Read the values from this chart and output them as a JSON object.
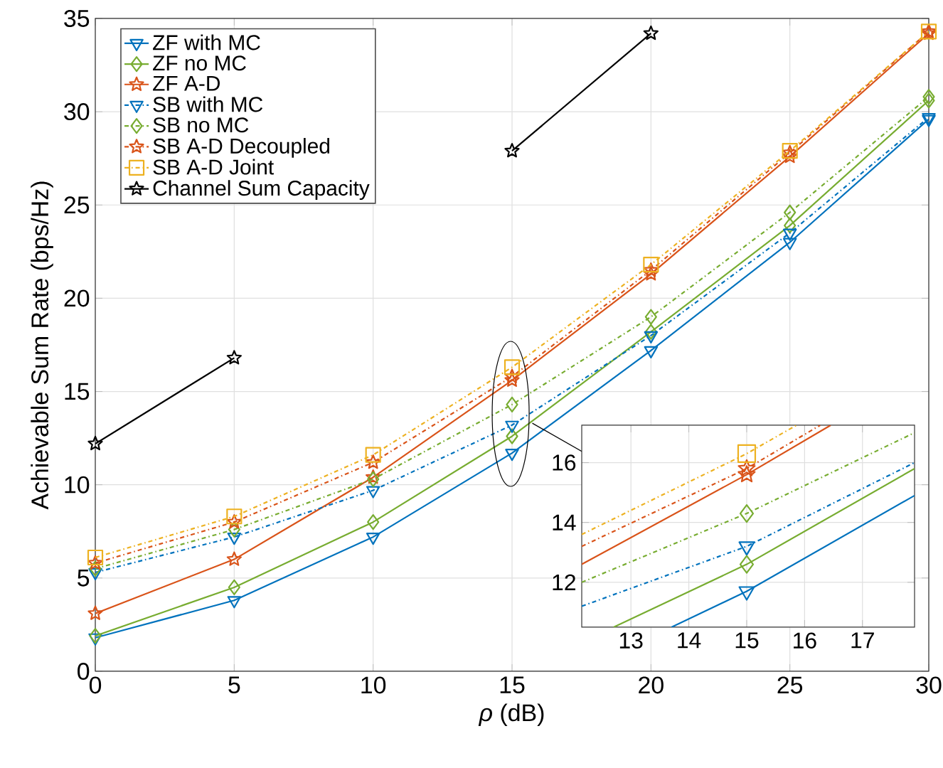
{
  "chart_data": [
    {
      "type": "line",
      "xlabel": "*ρ* (dB)",
      "ylabel": "Achievable Sum Rate (bps/Hz)",
      "x": [
        0,
        5,
        10,
        15,
        20,
        25,
        30
      ],
      "xlim": [
        0,
        30
      ],
      "ylim": [
        0,
        35
      ],
      "xticks": [
        0,
        5,
        10,
        15,
        20,
        25,
        30
      ],
      "yticks": [
        0,
        5,
        10,
        15,
        20,
        25,
        30,
        35
      ],
      "grid": true,
      "legend": "top left",
      "series": [
        {
          "name": "ZF with MC",
          "color": "#0072bd",
          "marker": "triangle",
          "line_style": "solid",
          "values": [
            1.8,
            3.8,
            7.2,
            11.7,
            17.2,
            23.0,
            29.6
          ]
        },
        {
          "name": "ZF no MC",
          "color": "#77ac30",
          "marker": "diamond",
          "line_style": "solid",
          "values": [
            1.9,
            4.5,
            8.0,
            12.6,
            18.2,
            23.9,
            30.6
          ]
        },
        {
          "name": "ZF A-D",
          "color": "#d95319",
          "marker": "star",
          "line_style": "solid",
          "values": [
            3.1,
            6.0,
            10.4,
            15.6,
            21.3,
            27.6,
            34.2
          ]
        },
        {
          "name": "SB with MC",
          "color": "#0072bd",
          "marker": "triangle",
          "line_style": "dashed",
          "values": [
            5.3,
            7.2,
            9.7,
            13.2,
            18.0,
            23.5,
            29.7
          ]
        },
        {
          "name": "SB no MC",
          "color": "#77ac30",
          "marker": "diamond",
          "line_style": "dashed",
          "values": [
            5.5,
            7.6,
            10.3,
            14.3,
            19.0,
            24.6,
            30.8
          ]
        },
        {
          "name": "SB A-D Decoupled",
          "color": "#d95319",
          "marker": "star",
          "line_style": "dashed",
          "values": [
            5.8,
            8.0,
            11.2,
            15.8,
            21.5,
            27.8,
            34.3
          ]
        },
        {
          "name": "SB A-D Joint",
          "color": "#edb120",
          "marker": "square",
          "line_style": "dashed",
          "values": [
            6.1,
            8.3,
            11.6,
            16.3,
            21.8,
            27.9,
            34.3
          ]
        },
        {
          "name": "Channel Sum Capacity",
          "color": "#000000",
          "marker": "star",
          "line_style": "solid",
          "values": [
            12.2,
            16.8,
            null,
            27.9,
            34.2,
            null,
            null
          ]
        }
      ]
    },
    {
      "type": "line",
      "x": [
        12.15,
        15,
        17.9
      ],
      "xlim": [
        12.15,
        17.9
      ],
      "ylim": [
        10.5,
        17.25
      ],
      "xticks": [
        13,
        14,
        15,
        16,
        17
      ],
      "yticks": [
        12,
        14,
        16
      ],
      "grid": true,
      "series": [
        {
          "color": "#0072bd",
          "line_style": "solid",
          "x": [
            13.7,
            15,
            17.9
          ],
          "values": [
            10.5,
            11.7,
            14.9
          ]
        },
        {
          "color": "#77ac30",
          "line_style": "solid",
          "x": [
            12.7,
            15,
            17.9
          ],
          "values": [
            10.5,
            12.6,
            15.8
          ]
        },
        {
          "color": "#d95319",
          "line_style": "solid",
          "x": [
            12.15,
            15,
            16.45
          ],
          "values": [
            12.6,
            15.6,
            17.25
          ]
        },
        {
          "color": "#0072bd",
          "line_style": "dashed",
          "values": [
            11.2,
            13.2,
            16.0
          ]
        },
        {
          "color": "#77ac30",
          "line_style": "dashed",
          "values": [
            12.0,
            14.3,
            17.0
          ]
        },
        {
          "color": "#d95319",
          "line_style": "dashed",
          "x": [
            12.15,
            15,
            16.27
          ],
          "values": [
            13.2,
            15.8,
            17.25
          ]
        },
        {
          "color": "#edb120",
          "line_style": "dashed",
          "x": [
            12.15,
            15,
            15.86
          ],
          "values": [
            13.6,
            16.3,
            17.25
          ]
        },
        {
          "type": "scatter",
          "color": "#0072bd",
          "marker": "triangle",
          "x": [
            15,
            15
          ],
          "values": [
            11.7,
            13.2
          ]
        },
        {
          "type": "scatter",
          "color": "#77ac30",
          "marker": "diamond",
          "x": [
            15,
            15
          ],
          "values": [
            12.6,
            14.3
          ]
        },
        {
          "type": "scatter",
          "color": "#d95319",
          "marker": "star",
          "x": [
            15,
            15
          ],
          "values": [
            15.6,
            15.8
          ]
        },
        {
          "type": "scatter",
          "color": "#edb120",
          "marker": "square",
          "x": [
            15
          ],
          "values": [
            16.3
          ]
        }
      ]
    }
  ]
}
